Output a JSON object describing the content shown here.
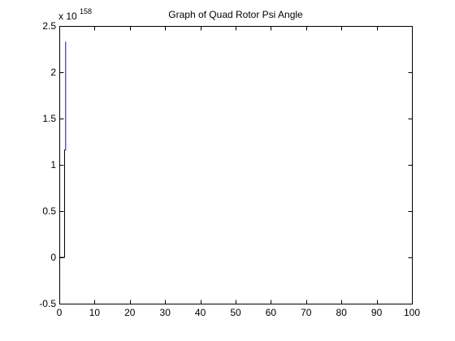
{
  "chart_data": {
    "type": "line",
    "title": "Graph of Quad Rotor Psi Angle",
    "xlabel": "",
    "ylabel": "",
    "xlim": [
      0,
      100
    ],
    "ylim": [
      -0.5,
      2.5
    ],
    "x_ticks": [
      0,
      10,
      20,
      30,
      40,
      50,
      60,
      70,
      80,
      90,
      100
    ],
    "y_ticks": [
      -0.5,
      0,
      0.5,
      1,
      1.5,
      2,
      2.5
    ],
    "y_tick_labels": [
      "-0.5",
      "0",
      "0.5",
      "1",
      "1.5",
      "2",
      "2.5"
    ],
    "y_exponent_base": "x 10",
    "y_exponent_power": "158",
    "grid": false,
    "series": [
      {
        "color": "#000000",
        "points": [
          [
            0,
            0
          ],
          [
            1.5,
            0
          ],
          [
            1.5,
            1.16
          ],
          [
            1.8,
            1.16
          ]
        ]
      },
      {
        "color": "#0000ff",
        "points": [
          [
            1.8,
            1.16
          ],
          [
            1.8,
            2.33
          ]
        ]
      }
    ]
  }
}
